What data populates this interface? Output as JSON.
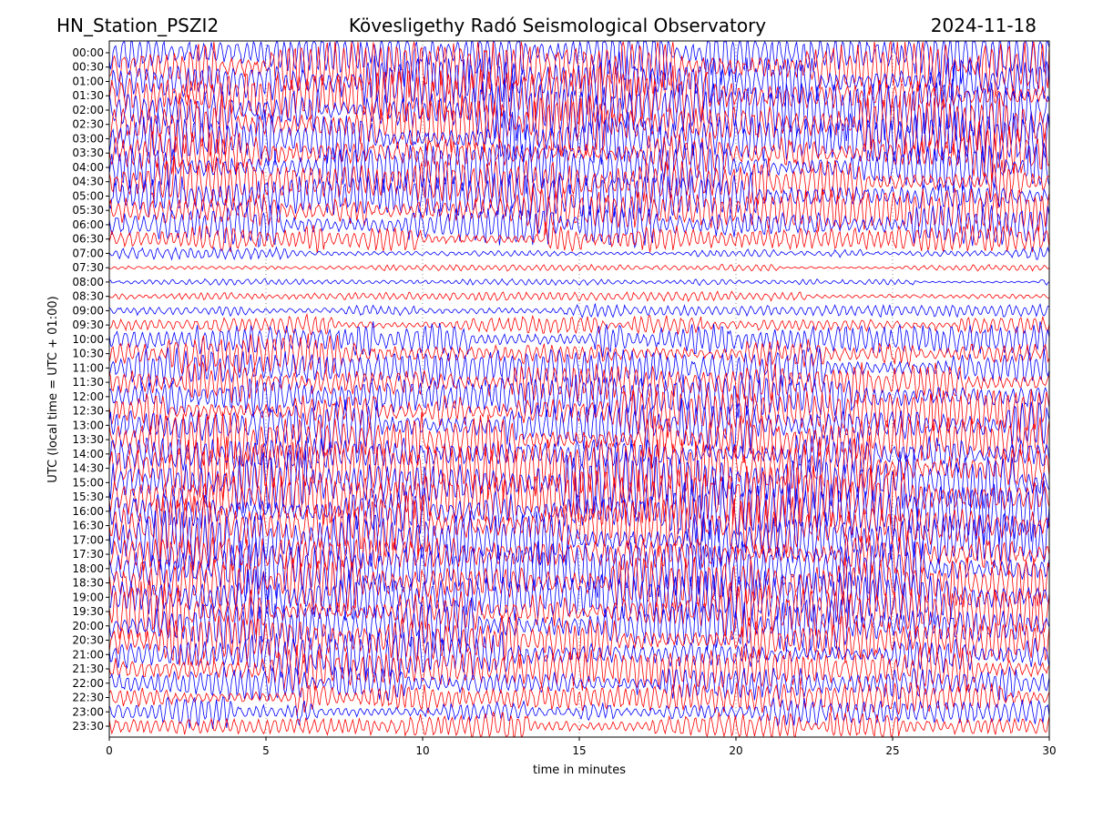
{
  "header": {
    "station": "HN_Station_PSZI2",
    "observatory": "Kövesligethy Radó Seismological Observatory",
    "date": "2024-11-18"
  },
  "chart_data": {
    "type": "line",
    "title": "Kövesligethy Radó Seismological Observatory",
    "xlabel": "time in minutes",
    "ylabel": "UTC (local time = UTC + 01:00)",
    "xlim": [
      0,
      30
    ],
    "x_ticks": [
      "0",
      "5",
      "10",
      "15",
      "20",
      "25",
      "30"
    ],
    "grid": "vertical dotted lines at 5, 10, 15, 20, 25 minutes",
    "trace_colors": [
      "#0000ff",
      "#ff0000"
    ],
    "rows": [
      "00:00",
      "00:30",
      "01:00",
      "01:30",
      "02:00",
      "02:30",
      "03:00",
      "03:30",
      "04:00",
      "04:30",
      "05:00",
      "05:30",
      "06:00",
      "06:30",
      "07:00",
      "07:30",
      "08:00",
      "08:30",
      "09:00",
      "09:30",
      "10:00",
      "10:30",
      "11:00",
      "11:30",
      "12:00",
      "12:30",
      "13:00",
      "13:30",
      "14:00",
      "14:30",
      "15:00",
      "15:30",
      "16:00",
      "16:30",
      "17:00",
      "17:30",
      "18:00",
      "18:30",
      "19:00",
      "19:30",
      "20:00",
      "20:30",
      "21:00",
      "21:30",
      "22:00",
      "22:30",
      "23:00",
      "23:30"
    ],
    "relative_amplitude": [
      0.95,
      0.9,
      0.9,
      0.95,
      0.95,
      0.95,
      0.9,
      0.85,
      0.8,
      0.75,
      0.75,
      0.7,
      0.65,
      0.45,
      0.18,
      0.1,
      0.1,
      0.15,
      0.2,
      0.3,
      0.55,
      0.6,
      0.6,
      0.65,
      0.7,
      0.75,
      0.8,
      0.85,
      0.9,
      0.95,
      1.0,
      1.0,
      1.0,
      1.0,
      1.0,
      0.95,
      0.9,
      0.85,
      0.85,
      0.85,
      0.85,
      0.8,
      0.75,
      0.65,
      0.55,
      0.5,
      0.45,
      0.45
    ]
  }
}
